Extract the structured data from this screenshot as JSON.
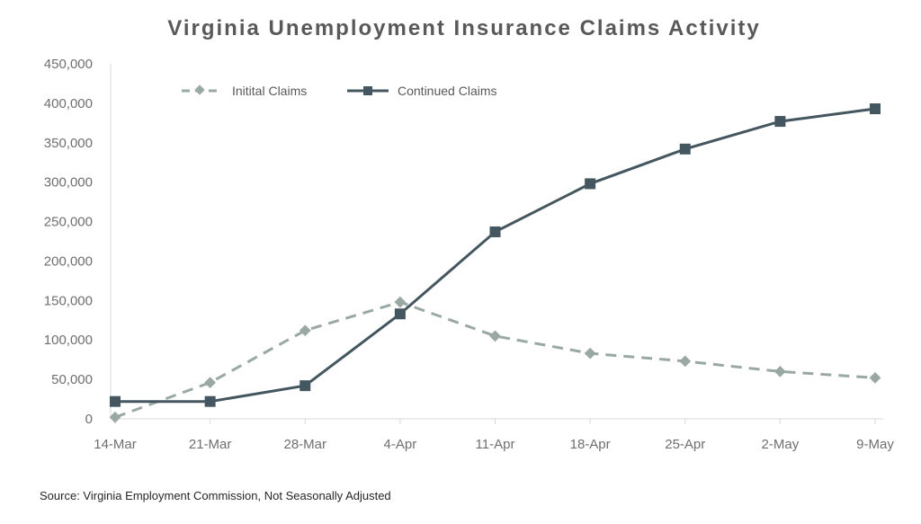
{
  "chart_data": {
    "type": "line",
    "title": "Virginia Unemployment Insurance Claims Activity",
    "categories": [
      "14-Mar",
      "21-Mar",
      "28-Mar",
      "4-Apr",
      "11-Apr",
      "18-Apr",
      "25-Apr",
      "2-May",
      "9-May"
    ],
    "ylim": [
      0,
      450000
    ],
    "yticks": [
      "0",
      "50,000",
      "100,000",
      "150,000",
      "200,000",
      "250,000",
      "300,000",
      "350,000",
      "400,000",
      "450,000"
    ],
    "grid": false,
    "legend_position": "top-left",
    "series": [
      {
        "name": "Initital Claims",
        "style": "dashed",
        "marker": "diamond",
        "color": "#9aa8a3",
        "values": [
          2000,
          46000,
          112000,
          148000,
          105000,
          83000,
          73000,
          60000,
          52000
        ]
      },
      {
        "name": "Continued Claims",
        "style": "solid",
        "marker": "square",
        "color": "#44565f",
        "values": [
          22000,
          22000,
          42000,
          133000,
          237000,
          298000,
          342000,
          377000,
          393000
        ]
      }
    ],
    "source": "Source: Virginia Employment  Commission, Not Seasonally Adjusted"
  }
}
